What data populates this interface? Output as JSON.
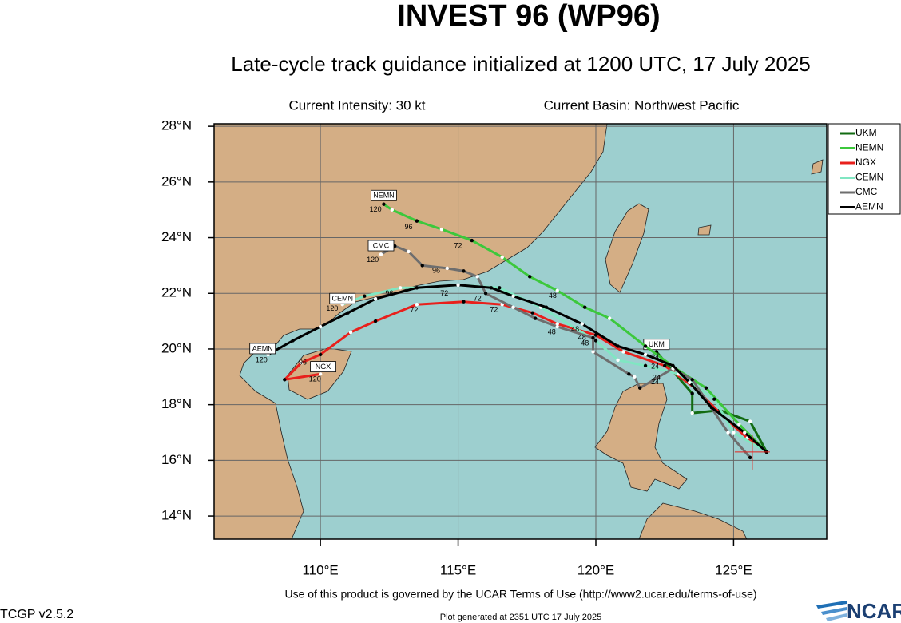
{
  "chart_data": {
    "type": "map",
    "title": "INVEST 96 (WP96)",
    "subtitle": "Late-cycle track guidance initialized at 1200 UTC, 17 July 2025",
    "info": [
      "Current Intensity: 30 kt",
      "Current Basin: Northwest Pacific"
    ],
    "xlim": [
      106.14,
      128.38
    ],
    "ylim": [
      13.17,
      28.09
    ],
    "xticks": [
      {
        "value": 110,
        "label": "110°E"
      },
      {
        "value": 115,
        "label": "115°E"
      },
      {
        "value": 120,
        "label": "120°E"
      },
      {
        "value": 125,
        "label": "125°E"
      }
    ],
    "yticks": [
      {
        "value": 14,
        "label": "14°N"
      },
      {
        "value": 16,
        "label": "16°N"
      },
      {
        "value": 18,
        "label": "18°N"
      },
      {
        "value": 20,
        "label": "20°N"
      },
      {
        "value": 22,
        "label": "22°N"
      },
      {
        "value": 24,
        "label": "24°N"
      },
      {
        "value": 26,
        "label": "26°N"
      },
      {
        "value": 28,
        "label": "28°N"
      }
    ],
    "grid": true,
    "storm_position": {
      "lon": 125.68,
      "lat": 16.3
    },
    "series": [
      {
        "name": "UKM",
        "color": "#126b12",
        "label_lon": 122.2,
        "label_lat": 20.15,
        "lon": [
          126.2,
          125.6,
          124.5,
          123.5,
          123.5,
          122.8,
          122.2
        ],
        "lat": [
          16.3,
          17.4,
          17.8,
          17.7,
          18.4,
          19.2,
          19.9
        ]
      },
      {
        "name": "NEMN",
        "color": "#3cc83c",
        "label_lon": 112.3,
        "label_lat": 25.5,
        "lon": [
          126.2,
          125.2,
          124.0,
          122.9,
          121.8,
          120.5,
          119.6,
          118.6,
          117.6,
          116.6,
          115.5,
          114.4,
          113.5,
          112.6,
          112.3
        ],
        "lat": [
          16.3,
          17.3,
          18.6,
          19.3,
          20.1,
          21.1,
          21.5,
          22.1,
          22.6,
          23.3,
          23.9,
          24.3,
          24.6,
          25.0,
          25.2
        ]
      },
      {
        "name": "NGX",
        "color": "#e8201c",
        "label_lon": 110.1,
        "label_lat": 19.35,
        "lon": [
          126.2,
          125.5,
          124.5,
          123.6,
          122.5,
          121.0,
          120.0,
          118.6,
          117.7,
          116.6,
          115.2,
          113.5,
          112.0,
          111.1,
          110.0,
          109.3,
          108.7,
          110.0
        ],
        "lat": [
          16.3,
          16.8,
          17.7,
          18.6,
          19.4,
          19.9,
          20.5,
          20.9,
          21.3,
          21.6,
          21.7,
          21.6,
          21.0,
          20.6,
          19.8,
          19.5,
          18.9,
          19.1
        ]
      },
      {
        "name": "CEMN",
        "color": "#80e6c2",
        "label_lon": 110.8,
        "label_lat": 21.8,
        "lon": [
          126.2,
          125.0,
          124.3,
          123.0,
          121.8,
          120.8,
          120.0,
          118.0,
          116.5,
          115.0,
          113.5,
          112.9,
          111.6,
          110.8
        ],
        "lat": [
          16.3,
          17.0,
          18.2,
          19.1,
          19.4,
          19.6,
          20.3,
          21.5,
          22.2,
          22.3,
          22.2,
          22.2,
          21.9,
          21.6
        ]
      },
      {
        "name": "CMC",
        "color": "#6e6e6e",
        "label_lon": 112.2,
        "label_lat": 23.7,
        "lon": [
          125.6,
          124.8,
          123.5,
          122.8,
          121.6,
          121.4,
          121.2,
          119.9,
          119.9,
          118.6,
          117.8,
          117.0,
          116.0,
          115.7,
          115.2,
          114.6,
          113.7,
          113.2,
          112.7,
          112.2
        ],
        "lat": [
          16.1,
          17.0,
          18.9,
          19.3,
          18.6,
          19.0,
          19.1,
          19.9,
          20.4,
          20.8,
          21.1,
          21.5,
          22.0,
          22.6,
          22.8,
          22.9,
          23.0,
          23.5,
          23.7,
          23.4
        ]
      },
      {
        "name": "AEMN",
        "color": "#000000",
        "label_lon": 107.9,
        "label_lat": 20.0,
        "lon": [
          126.2,
          125.4,
          124.2,
          123.4,
          122.8,
          121.8,
          120.8,
          119.5,
          118.2,
          117.0,
          116.2,
          115.0,
          113.5,
          112.0,
          111.0,
          110.0,
          109.0,
          108.1
        ],
        "lat": [
          16.3,
          17.0,
          17.9,
          18.8,
          19.4,
          19.8,
          20.1,
          20.9,
          21.5,
          21.9,
          22.2,
          22.3,
          22.2,
          21.8,
          21.3,
          20.8,
          20.3,
          19.8
        ]
      }
    ],
    "hour_labels": [
      {
        "text": "120",
        "lon": 112.0,
        "lat": 25.0
      },
      {
        "text": "96",
        "lon": 113.2,
        "lat": 24.37
      },
      {
        "text": "72",
        "lon": 115.0,
        "lat": 23.7
      },
      {
        "text": "48",
        "lon": 118.43,
        "lat": 21.9
      },
      {
        "text": "120",
        "lon": 111.9,
        "lat": 23.2
      },
      {
        "text": "96",
        "lon": 114.2,
        "lat": 22.8
      },
      {
        "text": "120",
        "lon": 110.43,
        "lat": 21.44
      },
      {
        "text": "96",
        "lon": 112.5,
        "lat": 21.99
      },
      {
        "text": "72",
        "lon": 114.5,
        "lat": 21.99
      },
      {
        "text": "120",
        "lon": 107.86,
        "lat": 19.6
      },
      {
        "text": "96",
        "lon": 109.36,
        "lat": 19.51
      },
      {
        "text": "120",
        "lon": 109.8,
        "lat": 18.9
      },
      {
        "text": "72",
        "lon": 113.4,
        "lat": 21.38
      },
      {
        "text": "72",
        "lon": 115.7,
        "lat": 21.8
      },
      {
        "text": "72",
        "lon": 116.3,
        "lat": 21.4
      },
      {
        "text": "48",
        "lon": 118.4,
        "lat": 20.6
      },
      {
        "text": "48",
        "lon": 119.25,
        "lat": 20.7
      },
      {
        "text": "48",
        "lon": 119.5,
        "lat": 20.4
      },
      {
        "text": "48",
        "lon": 119.6,
        "lat": 20.2
      },
      {
        "text": "24",
        "lon": 122.15,
        "lat": 19.7
      },
      {
        "text": "24",
        "lon": 122.15,
        "lat": 19.37
      },
      {
        "text": "24",
        "lon": 122.2,
        "lat": 18.96
      },
      {
        "text": "24",
        "lon": 122.15,
        "lat": 18.8
      }
    ]
  },
  "footer": {
    "terms": "Use of this product is governed by the UCAR Terms of Use (http://www2.ucar.edu/terms-of-use)",
    "version": "TCGP v2.5.2",
    "generated": "Plot generated at 2351 UTC   17 July 2025",
    "logo": "NCAR"
  }
}
